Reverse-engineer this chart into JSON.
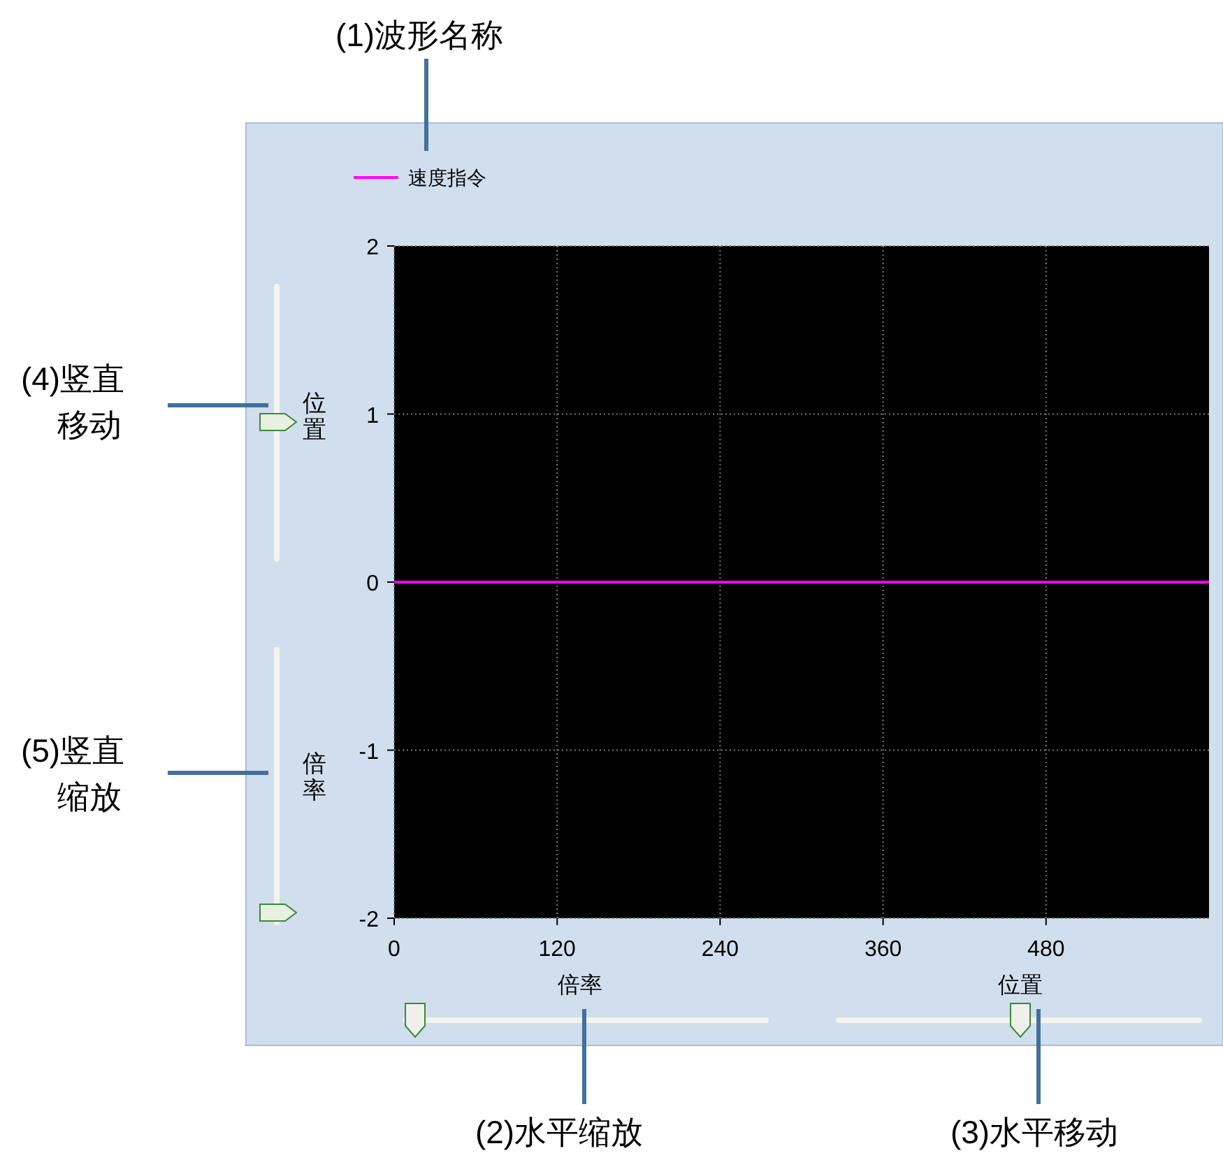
{
  "chart_data": {
    "type": "line",
    "x": [
      0,
      600
    ],
    "series": [
      {
        "name": "速度指令",
        "color": "#ff00ff",
        "values": [
          0,
          0
        ]
      }
    ],
    "xlim": [
      0,
      600
    ],
    "ylim": [
      -2,
      2
    ],
    "xticks": [
      0,
      120,
      240,
      360,
      480
    ],
    "yticks": [
      -2,
      -1,
      0,
      1,
      2
    ],
    "grid": true,
    "legend": "top left",
    "marker": "none",
    "line_style": "solid",
    "annotations": [
      "(1)波形名称",
      "(2)水平缩放",
      "(3)水平移动",
      "(4)竖直移动",
      "(5)竖直缩放",
      "位置",
      "倍率",
      "倍率",
      "位置"
    ]
  }
}
